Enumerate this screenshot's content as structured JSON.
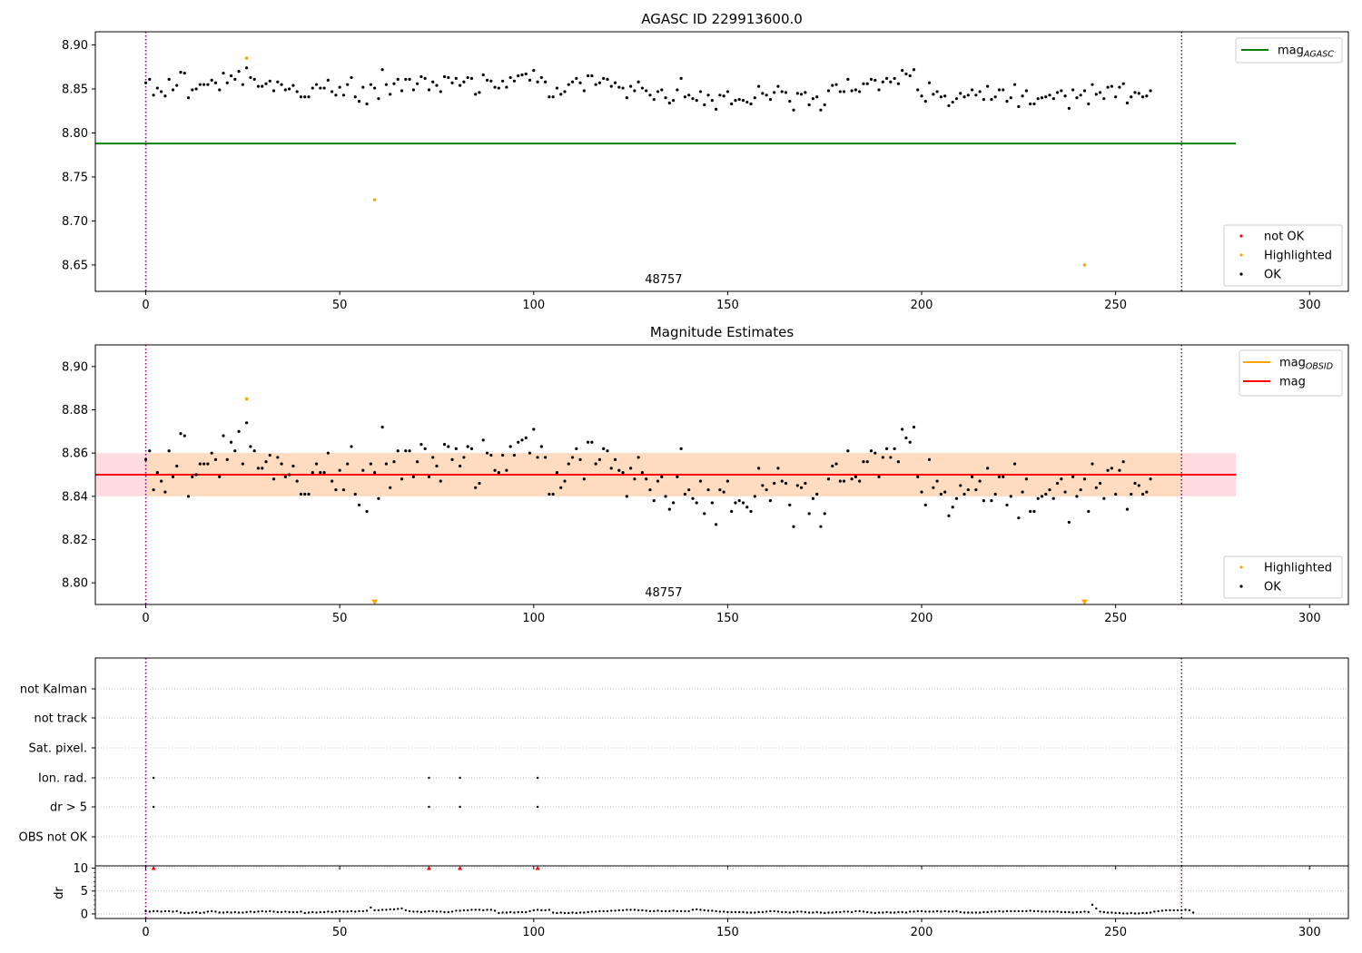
{
  "chart_data": [
    {
      "type": "scatter",
      "title": "AGASC ID 229913600.0",
      "xlim": [
        -13,
        310
      ],
      "ylim": [
        8.62,
        8.915
      ],
      "xticks": [
        0,
        50,
        100,
        150,
        200,
        250,
        300
      ],
      "yticks": [
        8.65,
        8.7,
        8.75,
        8.8,
        8.85,
        8.9
      ],
      "ytick_labels": [
        "8.65",
        "8.70",
        "8.75",
        "8.80",
        "8.85",
        "8.90"
      ],
      "obsid_label": "48757",
      "obsid_label_x": 133.5,
      "boundaries": [
        0,
        267
      ],
      "mag_agasc": 8.788,
      "mag_agasc_range": [
        -13,
        281
      ],
      "ok_points": {
        "start_x": 0,
        "y": [
          8.857,
          8.861,
          8.843,
          8.851,
          8.847,
          8.842,
          8.861,
          8.849,
          8.854,
          8.869,
          8.868,
          8.84,
          8.849,
          8.85,
          8.855,
          8.855,
          8.855,
          8.86,
          8.857,
          8.849,
          8.868,
          8.857,
          8.865,
          8.861,
          8.87,
          8.855,
          8.874,
          8.863,
          8.861,
          8.853,
          8.853,
          8.856,
          8.859,
          8.848,
          8.858,
          8.855,
          8.849,
          8.85,
          8.854,
          8.847,
          8.841,
          8.841,
          8.841,
          8.851,
          8.855,
          8.851,
          8.851,
          8.86,
          8.847,
          8.843,
          8.852,
          8.843,
          8.855,
          8.863,
          8.841,
          8.836,
          8.852,
          8.833,
          8.855,
          8.851,
          8.839,
          8.872,
          8.855,
          8.844,
          8.856,
          8.861,
          8.848,
          8.861,
          8.861,
          8.849,
          8.856,
          8.864,
          8.862,
          8.849,
          8.858,
          8.854,
          8.847,
          8.864,
          8.863,
          8.857,
          8.862,
          8.854,
          8.858,
          8.863,
          8.862,
          8.844,
          8.846,
          8.866,
          8.86,
          8.859,
          8.852,
          8.851,
          8.859,
          8.852,
          8.863,
          8.859,
          8.865,
          8.866,
          8.867,
          8.86,
          8.871,
          8.858,
          8.863,
          8.858,
          8.841,
          8.841,
          8.851,
          8.844,
          8.847,
          8.855,
          8.858,
          8.862,
          8.857,
          8.848,
          8.865,
          8.865,
          8.855,
          8.857,
          8.862,
          8.861,
          8.853,
          8.857,
          8.852,
          8.851,
          8.84,
          8.853,
          8.848,
          8.858,
          8.851,
          8.848,
          8.843,
          8.838,
          8.847,
          8.849,
          8.84,
          8.834,
          8.837,
          8.849,
          8.862,
          8.841,
          8.843,
          8.839,
          8.837,
          8.847,
          8.832,
          8.843,
          8.837,
          8.827,
          8.843,
          8.842,
          8.847,
          8.833,
          8.837,
          8.838,
          8.837,
          8.835,
          8.833,
          8.84,
          8.853,
          8.845,
          8.843,
          8.838,
          8.846,
          8.853,
          8.847,
          8.846,
          8.836,
          8.826,
          8.845,
          8.844,
          8.846,
          8.832,
          8.839,
          8.841,
          8.826,
          8.832,
          8.848,
          8.854,
          8.855,
          8.847,
          8.847,
          8.861,
          8.848,
          8.849,
          8.847,
          8.856,
          8.856,
          8.861,
          8.86,
          8.849,
          8.858,
          8.862,
          8.858,
          8.862,
          8.856,
          8.871,
          8.867,
          8.865,
          8.872,
          8.849,
          8.842,
          8.836,
          8.857,
          8.844,
          8.847,
          8.841,
          8.842,
          8.831,
          8.835,
          8.839,
          8.845,
          8.841,
          8.843,
          8.849,
          8.843,
          8.847,
          8.838,
          8.853,
          8.838,
          8.841,
          8.849,
          8.849,
          8.836,
          8.84,
          8.855,
          8.83,
          8.842,
          8.848,
          8.833,
          8.833,
          8.839,
          8.84,
          8.841,
          8.843,
          8.839,
          8.846,
          8.848,
          8.842,
          8.828,
          8.849,
          8.84,
          8.843,
          8.848,
          8.833,
          8.855,
          8.844,
          8.846,
          8.839,
          8.852,
          8.853,
          8.841,
          8.852,
          8.856,
          8.834,
          8.841,
          8.846,
          8.845,
          8.841,
          8.842,
          8.848
        ]
      },
      "highlighted_points": [
        {
          "x": 26,
          "y": 8.885
        },
        {
          "x": 59,
          "y": 8.724
        },
        {
          "x": 242,
          "y": 8.65
        }
      ],
      "legend_top": {
        "position": "upper-right",
        "entries": [
          {
            "kind": "line",
            "color": "#008000",
            "label": "mag",
            "sub": "AGASC"
          }
        ]
      },
      "legend_bottom": {
        "position": "lower-right",
        "entries": [
          {
            "kind": "dot",
            "color": "#ff0000",
            "label": "not OK"
          },
          {
            "kind": "dot",
            "color": "#ffa500",
            "label": "Highlighted"
          },
          {
            "kind": "dot",
            "color": "#000000",
            "label": "OK"
          }
        ]
      },
      "grid": false
    },
    {
      "type": "scatter",
      "title": "Magnitude Estimates",
      "xlim": [
        -13,
        310
      ],
      "ylim": [
        8.79,
        8.91
      ],
      "xticks": [
        0,
        50,
        100,
        150,
        200,
        250,
        300
      ],
      "yticks": [
        8.8,
        8.82,
        8.84,
        8.86,
        8.88,
        8.9
      ],
      "ytick_labels": [
        "8.80",
        "8.82",
        "8.84",
        "8.86",
        "8.88",
        "8.90"
      ],
      "obsid_label": "48757",
      "obsid_label_x": 133.5,
      "boundaries": [
        0,
        267
      ],
      "mag": 8.85,
      "mag_band": [
        8.84,
        8.86
      ],
      "mag_obsid": 8.85,
      "mag_obsid_band": [
        8.84,
        8.86
      ],
      "band_range": [
        -13,
        281
      ],
      "ok_points_ref": 0,
      "highlighted_points": [
        {
          "x": 26,
          "y": 8.885
        },
        {
          "x": 59,
          "y": 8.791,
          "marker": "down-triangle"
        },
        {
          "x": 242,
          "y": 8.791,
          "marker": "down-triangle"
        }
      ],
      "legend_top": {
        "position": "upper-right",
        "entries": [
          {
            "kind": "line",
            "color": "#ffa500",
            "label": "mag",
            "sub": "OBSID"
          },
          {
            "kind": "line",
            "color": "#ff0000",
            "label": "mag",
            "sub": ""
          }
        ]
      },
      "legend_bottom": {
        "position": "lower-right",
        "entries": [
          {
            "kind": "dot",
            "color": "#ffa500",
            "label": "Highlighted"
          },
          {
            "kind": "dot",
            "color": "#000000",
            "label": "OK"
          }
        ]
      },
      "grid": false
    },
    {
      "type": "scatter",
      "title": "",
      "xlim": [
        -13,
        310
      ],
      "xticks": [
        0,
        50,
        100,
        150,
        200,
        250,
        300
      ],
      "flag_rows": [
        "not Kalman",
        "not track",
        "Sat. pixel.",
        "Ion. rad.",
        "dr > 5",
        "OBS not OK"
      ],
      "flag_points": [
        {
          "row": "Ion. rad.",
          "x": [
            2,
            73,
            81,
            101
          ]
        },
        {
          "row": "dr > 5",
          "x": [
            2,
            73,
            81,
            101
          ]
        }
      ],
      "boundaries": [
        0,
        267
      ],
      "grid": "dotted-horizontal"
    },
    {
      "type": "scatter",
      "title": "",
      "ylabel": "dr",
      "xlim": [
        -13,
        310
      ],
      "ylim": [
        -1,
        10.5
      ],
      "yticks": [
        0,
        5,
        10
      ],
      "ytick_labels": [
        "0",
        "5",
        "10"
      ],
      "xticks": [
        0,
        50,
        100,
        150,
        200,
        250,
        300
      ],
      "xtick_labels": [
        "0",
        "50",
        "100",
        "150",
        "200",
        "250",
        "300"
      ],
      "boundaries": [
        0,
        267
      ],
      "dr_points": {
        "start_x": 0,
        "y": [
          0.6,
          0.5,
          0.6,
          0.6,
          0.5,
          0.6,
          0.6,
          0.5,
          0.6,
          0.3,
          0.2,
          0.2,
          0.3,
          0.4,
          0.2,
          0.3,
          0.5,
          0.6,
          0.5,
          0.3,
          0.3,
          0.4,
          0.3,
          0.4,
          0.3,
          0.3,
          0.4,
          0.5,
          0.4,
          0.5,
          0.6,
          0.5,
          0.6,
          0.5,
          0.4,
          0.4,
          0.5,
          0.4,
          0.4,
          0.4,
          0.5,
          0.2,
          0.3,
          0.4,
          0.3,
          0.4,
          0.4,
          0.5,
          0.4,
          0.5,
          0.6,
          0.5,
          0.5,
          0.6,
          0.5,
          0.6,
          0.6,
          0.7,
          1.4,
          0.8,
          0.8,
          0.9,
          0.9,
          1.0,
          1.0,
          1.1,
          1.2,
          0.8,
          0.6,
          0.5,
          0.5,
          0.4,
          0.5,
          0.6,
          0.6,
          0.5,
          0.5,
          0.4,
          0.4,
          0.5,
          0.7,
          0.7,
          0.8,
          0.8,
          0.9,
          0.9,
          0.9,
          0.8,
          0.9,
          0.9,
          0.7,
          0.2,
          0.3,
          0.3,
          0.4,
          0.3,
          0.4,
          0.4,
          0.4,
          0.6,
          0.8,
          0.9,
          0.8,
          0.8,
          0.9,
          0.3,
          0.2,
          0.3,
          0.2,
          0.2,
          0.3,
          0.2,
          0.3,
          0.3,
          0.4,
          0.5,
          0.5,
          0.6,
          0.6,
          0.6,
          0.7,
          0.7,
          0.8,
          0.8,
          0.9,
          0.9,
          0.9,
          0.8,
          0.8,
          0.7,
          0.6,
          0.6,
          0.7,
          0.6,
          0.6,
          0.6,
          0.7,
          0.6,
          0.6,
          0.6,
          0.6,
          0.9,
          1.0,
          0.9,
          0.8,
          0.7,
          0.7,
          0.6,
          0.5,
          0.5,
          0.4,
          0.4,
          0.4,
          0.4,
          0.4,
          0.3,
          0.3,
          0.3,
          0.4,
          0.4,
          0.5,
          0.6,
          0.6,
          0.5,
          0.4,
          0.4,
          0.3,
          0.4,
          0.5,
          0.5,
          0.4,
          0.3,
          0.3,
          0.4,
          0.3,
          0.2,
          0.3,
          0.3,
          0.4,
          0.4,
          0.5,
          0.5,
          0.4,
          0.6,
          0.6,
          0.5,
          0.4,
          0.3,
          0.2,
          0.3,
          0.3,
          0.4,
          0.3,
          0.3,
          0.4,
          0.4,
          0.3,
          0.5,
          0.5,
          0.6,
          0.6,
          0.5,
          0.5,
          0.5,
          0.6,
          0.5,
          0.6,
          0.5,
          0.5,
          0.6,
          0.4,
          0.3,
          0.3,
          0.3,
          0.3,
          0.3,
          0.4,
          0.4,
          0.5,
          0.5,
          0.6,
          0.5,
          0.6,
          0.6,
          0.6,
          0.6,
          0.6,
          0.6,
          0.7,
          0.6,
          0.6,
          0.5,
          0.5,
          0.5,
          0.5,
          0.5,
          0.4,
          0.4,
          0.4,
          0.3,
          0.4,
          0.4,
          0.5,
          0.4,
          2.0,
          1.2,
          0.5,
          0.4,
          0.3,
          0.3,
          0.2,
          0.2,
          0.1,
          0.1,
          0.2,
          0.1,
          0.1,
          0.2,
          0.2,
          0.3,
          0.5,
          0.6,
          0.7,
          0.8,
          0.8,
          0.8,
          0.8,
          0.8,
          0.9,
          0.8,
          0.3
        ]
      },
      "dr_flagged": {
        "x": [
          2,
          73,
          81,
          101
        ],
        "y": 10
      },
      "grid": "dotted-horizontal"
    }
  ],
  "colors": {
    "ok": "#000000",
    "highlighted": "#ffa500",
    "not_ok": "#ff0000",
    "mag_agasc": "#008000",
    "mag": "#ff0000",
    "mag_obsid": "#ffa500",
    "mag_band": "#ffc0cb",
    "mag_obsid_band": "#ffdab9",
    "boundary": "#800080",
    "grid": "#b0b0b0"
  }
}
